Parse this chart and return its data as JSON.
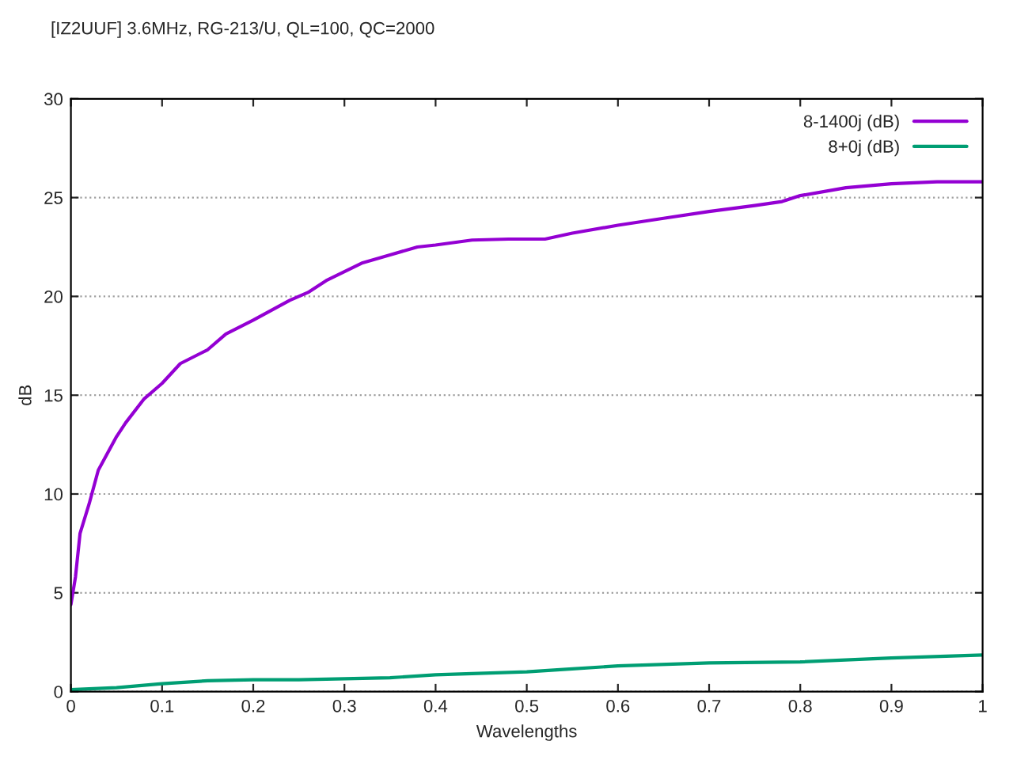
{
  "chart_data": {
    "type": "line",
    "title": "[IZ2UUF] 3.6MHz, RG-213/U, QL=100, QC=2000",
    "xlabel": "Wavelengths",
    "ylabel": "dB",
    "xlim": [
      0,
      1
    ],
    "ylim": [
      0,
      30
    ],
    "xticks": [
      0,
      0.1,
      0.2,
      0.3,
      0.4,
      0.5,
      0.6,
      0.7,
      0.8,
      0.9,
      1
    ],
    "yticks": [
      0,
      5,
      10,
      15,
      20,
      25,
      30
    ],
    "grid": "y",
    "legend": "top right",
    "marker": "none",
    "line_style": "solid",
    "series": [
      {
        "name": "8-1400j (dB)",
        "color": "#9400d3",
        "x": [
          0,
          0.005,
          0.01,
          0.02,
          0.03,
          0.05,
          0.06,
          0.08,
          0.1,
          0.12,
          0.15,
          0.17,
          0.2,
          0.24,
          0.26,
          0.28,
          0.32,
          0.35,
          0.38,
          0.4,
          0.44,
          0.48,
          0.52,
          0.55,
          0.6,
          0.65,
          0.7,
          0.75,
          0.78,
          0.8,
          0.85,
          0.9,
          0.95,
          1.0
        ],
        "values": [
          4.4,
          5.8,
          8,
          9.5,
          11.2,
          12.9,
          13.6,
          14.8,
          15.6,
          16.6,
          17.3,
          18.1,
          18.8,
          19.8,
          20.2,
          20.8,
          21.7,
          22.1,
          22.5,
          22.6,
          22.85,
          22.9,
          22.9,
          23.2,
          23.6,
          23.95,
          24.3,
          24.6,
          24.8,
          25.1,
          25.5,
          25.7,
          25.8,
          25.8
        ]
      },
      {
        "name": "8+0j (dB)",
        "color": "#009e73",
        "x": [
          0,
          0.05,
          0.1,
          0.15,
          0.2,
          0.25,
          0.3,
          0.35,
          0.4,
          0.5,
          0.55,
          0.6,
          0.7,
          0.8,
          0.9,
          1.0
        ],
        "values": [
          0.1,
          0.2,
          0.4,
          0.55,
          0.6,
          0.6,
          0.65,
          0.7,
          0.85,
          1.0,
          1.15,
          1.3,
          1.45,
          1.5,
          1.7,
          1.85
        ]
      }
    ]
  }
}
